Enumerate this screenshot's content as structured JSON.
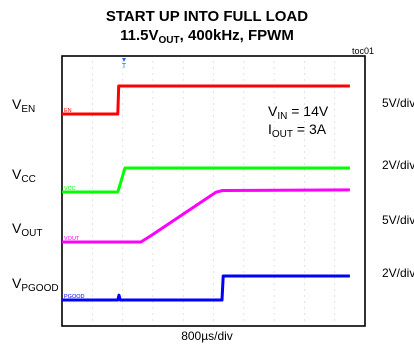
{
  "chart_data": {
    "type": "line",
    "title_line1": "START UP INTO FULL LOAD",
    "title_line2": {
      "value": "11.5V",
      "sub": "OUT",
      "rest": ", 400kHz, FPWM"
    },
    "tag": "toc01",
    "time_scale": "800µs/div",
    "annotations": [
      {
        "main": "V",
        "sub": "IN",
        "rest": " = 14V"
      },
      {
        "main": "I",
        "sub": "OUT",
        "rest": " = 3A"
      }
    ],
    "channels": [
      {
        "name": "V",
        "sub": "EN",
        "marker": "EN",
        "scale": "5V/div",
        "color": "#ff0000",
        "points": [
          [
            0,
            0
          ],
          [
            1.84,
            0
          ],
          [
            1.87,
            1
          ],
          [
            9.5,
            1
          ]
        ]
      },
      {
        "name": "V",
        "sub": "CC",
        "marker": "VCC",
        "scale": "2V/div",
        "color": "#00ff00",
        "points": [
          [
            0,
            0
          ],
          [
            1.84,
            0
          ],
          [
            2.08,
            1
          ],
          [
            9.5,
            1
          ]
        ]
      },
      {
        "name": "V",
        "sub": "OUT",
        "marker": "VOUT",
        "scale": "5V/div",
        "color": "#ff00ff",
        "points": [
          [
            0,
            0
          ],
          [
            2.6,
            0
          ],
          [
            2.9,
            0.1
          ],
          [
            5.08,
            0.89
          ],
          [
            5.3,
            0.92
          ],
          [
            9.5,
            0.93
          ]
        ]
      },
      {
        "name": "V",
        "sub": "PGOOD",
        "marker": "PGOOD",
        "scale": "2V/div",
        "color": "#0000ff",
        "points": [
          [
            0,
            0
          ],
          [
            1.84,
            0
          ],
          [
            1.88,
            0.2
          ],
          [
            1.92,
            0
          ],
          [
            5.28,
            0
          ],
          [
            5.32,
            1
          ],
          [
            9.5,
            1
          ]
        ]
      }
    ]
  }
}
